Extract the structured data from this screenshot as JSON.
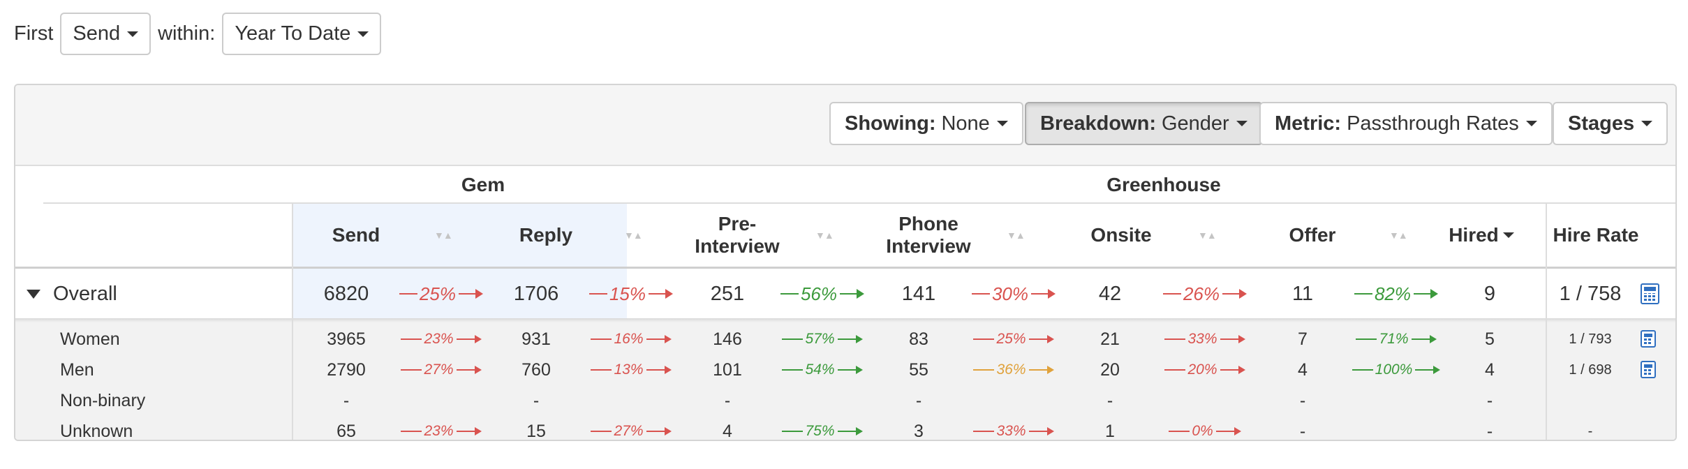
{
  "filter": {
    "first_label": "First",
    "first_value": "Send",
    "within_label": "within:",
    "within_value": "Year To Date"
  },
  "toolbar": {
    "showing_label": "Showing:",
    "showing_value": "None",
    "breakdown_label": "Breakdown:",
    "breakdown_value": "Gender",
    "metric_label": "Metric:",
    "metric_value": "Passthrough Rates",
    "stages_label": "Stages"
  },
  "table": {
    "groups": [
      "Gem",
      "Greenhouse"
    ],
    "columns": [
      "Send",
      "Reply",
      "Pre-\nInterview",
      "Phone\nInterview",
      "Onsite",
      "Offer",
      "Hired",
      "Hire Rate"
    ],
    "sort_glyph": "▼▲",
    "overall": {
      "label": "Overall",
      "values": [
        "6820",
        "1706",
        "251",
        "141",
        "42",
        "11",
        "9"
      ],
      "rates": [
        "25%",
        "15%",
        "56%",
        "30%",
        "26%",
        "82%"
      ],
      "hire_rate": "1 / 758"
    },
    "rows": [
      {
        "label": "Women",
        "values": [
          "3965",
          "931",
          "146",
          "83",
          "21",
          "7",
          "5"
        ],
        "rates": [
          "23%",
          "16%",
          "57%",
          "25%",
          "33%",
          "71%"
        ],
        "hire_rate": "1 / 793"
      },
      {
        "label": "Men",
        "values": [
          "2790",
          "760",
          "101",
          "55",
          "20",
          "4",
          "4"
        ],
        "rates": [
          "27%",
          "13%",
          "54%",
          "36%",
          "20%",
          "100%"
        ],
        "hire_rate": "1 / 698"
      },
      {
        "label": "Non-binary",
        "values": [
          "-",
          "-",
          "-",
          "-",
          "-",
          "-",
          "-"
        ],
        "rates": [
          "",
          "",
          "",
          "",
          "",
          ""
        ],
        "hire_rate": ""
      },
      {
        "label": "Unknown",
        "values": [
          "65",
          "15",
          "4",
          "3",
          "1",
          "-",
          "-"
        ],
        "rates": [
          "23%",
          "27%",
          "75%",
          "33%",
          "0%",
          ""
        ],
        "hire_rate": "-"
      }
    ]
  },
  "colors": {
    "rate_red": "#d9534f",
    "rate_green": "#3c9a3c",
    "rate_orange": "#e0a23c",
    "accent_blue": "#2f6fc0"
  }
}
